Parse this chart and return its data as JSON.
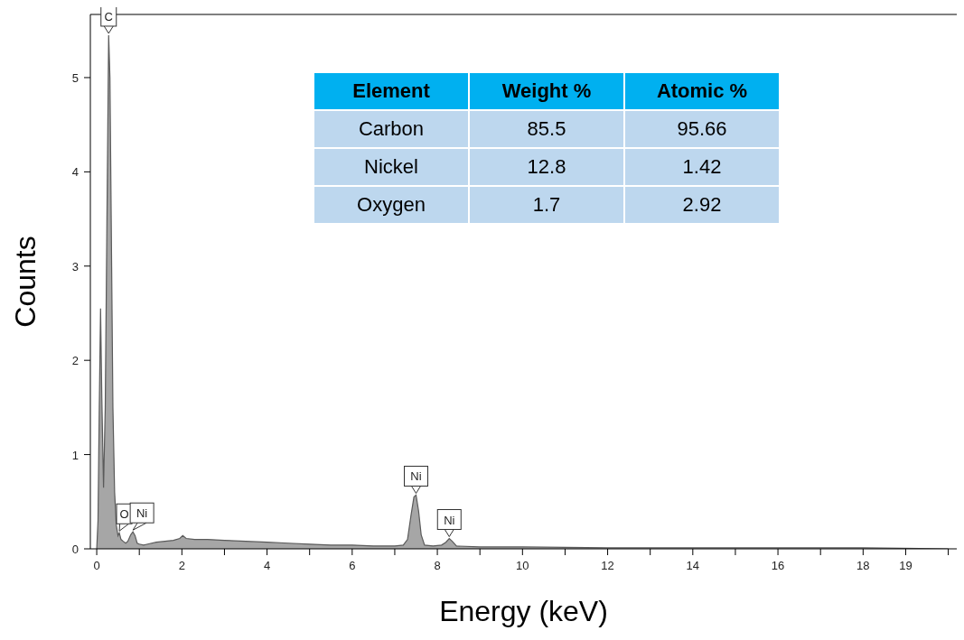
{
  "chart_data": [
    {
      "type": "area",
      "xlabel": "Energy (keV)",
      "ylabel": "Counts",
      "x": [
        0,
        0.03,
        0.06,
        0.09,
        0.12,
        0.16,
        0.2,
        0.24,
        0.28,
        0.31,
        0.35,
        0.38,
        0.42,
        0.46,
        0.5,
        0.53,
        0.57,
        0.62,
        0.68,
        0.73,
        0.8,
        0.85,
        0.9,
        0.95,
        1.0,
        1.1,
        1.2,
        1.4,
        1.6,
        1.8,
        1.95,
        2.02,
        2.1,
        2.3,
        2.6,
        3.0,
        3.5,
        4.0,
        4.5,
        5.0,
        5.5,
        6.0,
        6.5,
        7.0,
        7.2,
        7.3,
        7.38,
        7.45,
        7.5,
        7.56,
        7.62,
        7.7,
        7.9,
        8.1,
        8.2,
        8.28,
        8.35,
        8.45,
        9,
        10,
        12,
        14,
        16,
        18,
        20
      ],
      "series": [
        {
          "color": "#a6a6a6",
          "values": [
            0,
            0.3,
            1.5,
            2.55,
            1.6,
            0.65,
            1.5,
            3.5,
            5.45,
            5.0,
            3.0,
            1.5,
            0.6,
            0.25,
            0.14,
            0.17,
            0.1,
            0.08,
            0.06,
            0.08,
            0.15,
            0.18,
            0.14,
            0.06,
            0.05,
            0.04,
            0.05,
            0.07,
            0.08,
            0.09,
            0.11,
            0.14,
            0.11,
            0.1,
            0.1,
            0.09,
            0.08,
            0.07,
            0.06,
            0.05,
            0.04,
            0.04,
            0.03,
            0.03,
            0.04,
            0.1,
            0.35,
            0.55,
            0.57,
            0.4,
            0.15,
            0.04,
            0.03,
            0.04,
            0.07,
            0.11,
            0.08,
            0.03,
            0.02,
            0.02,
            0.01,
            0.01,
            0.01,
            0.01,
            0
          ]
        }
      ],
      "xlim": [
        -0.15,
        20.2
      ],
      "xticks": [
        0,
        {
          "value": 1,
          "label": null
        },
        2,
        {
          "value": 3,
          "label": null
        },
        4,
        {
          "value": 5,
          "label": null
        },
        6,
        {
          "value": 7,
          "label": null
        },
        8,
        {
          "value": 9,
          "label": null
        },
        10,
        {
          "value": 11,
          "label": null
        },
        12,
        {
          "value": 13,
          "label": null
        },
        14,
        {
          "value": 15,
          "label": null
        },
        16,
        {
          "value": 17,
          "label": null
        },
        18,
        19,
        {
          "value": 20,
          "label": null
        }
      ],
      "ylim": [
        0,
        5.67
      ],
      "yticks": [
        0,
        1,
        2,
        3,
        4,
        5
      ],
      "annotations": [
        {
          "text": "C",
          "x": 0.28,
          "y": 5.45
        },
        {
          "text": "O",
          "x": 0.53,
          "y": 0.17
        },
        {
          "text": "Ni",
          "x": 0.85,
          "y": 0.18
        },
        {
          "text": "Ni",
          "x": 7.5,
          "y": 0.57
        },
        {
          "text": "Ni",
          "x": 8.28,
          "y": 0.11
        }
      ]
    },
    {
      "type": "other",
      "xlabel": "Element",
      "data_labels": true,
      "categories": [
        "Carbon",
        "Nickel",
        "Oxygen"
      ],
      "series": [
        {
          "name": "Weight %",
          "values": [
            85.5,
            12.8,
            1.7
          ]
        },
        {
          "name": "Atomic %",
          "values": [
            95.66,
            1.42,
            2.92
          ]
        }
      ]
    }
  ]
}
